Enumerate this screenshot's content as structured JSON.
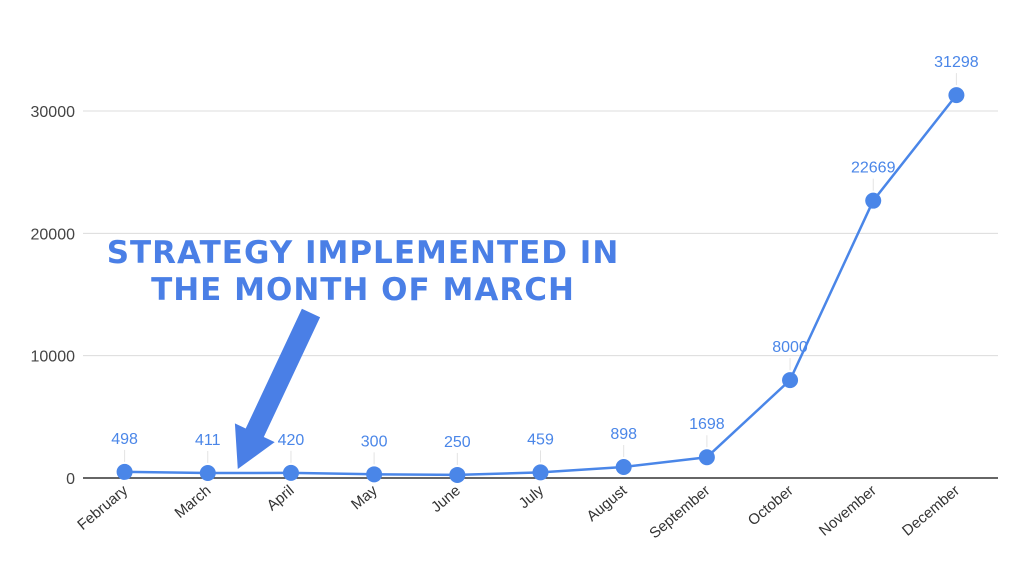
{
  "chart_data": {
    "type": "line",
    "categories": [
      "February",
      "March",
      "April",
      "May",
      "June",
      "July",
      "August",
      "September",
      "October",
      "November",
      "December"
    ],
    "values": [
      498,
      411,
      420,
      300,
      250,
      459,
      898,
      1698,
      8000,
      22669,
      31298
    ],
    "data_labels": [
      "498",
      "411",
      "420",
      "300",
      "250",
      "459",
      "898",
      "1698",
      "8000",
      "22669",
      "31298"
    ],
    "yticks": [
      0,
      10000,
      20000,
      30000
    ],
    "ytick_labels": [
      "0",
      "10000",
      "20000",
      "30000"
    ],
    "ylim": [
      0,
      34000
    ],
    "grid": true,
    "legend": "none",
    "title": "",
    "xlabel": "",
    "ylabel": "",
    "line_color": "#4a86e8",
    "annotation": {
      "lines": [
        "STRATEGY IMPLEMENTED IN",
        "THE MONTH OF MARCH"
      ],
      "target_category": "March",
      "color": "#4a7fe6"
    }
  }
}
